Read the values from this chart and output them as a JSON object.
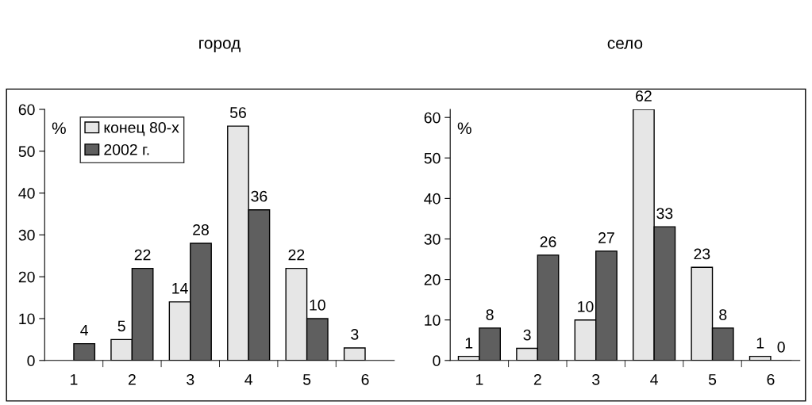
{
  "chart_data": [
    {
      "type": "bar",
      "title": "город",
      "ylabel": "%",
      "categories": [
        "1",
        "2",
        "3",
        "4",
        "5",
        "6"
      ],
      "ylim": [
        0,
        60
      ],
      "yticks": [
        0,
        10,
        20,
        30,
        40,
        50,
        60
      ],
      "data_labels": true,
      "legend": "top left",
      "grid": false,
      "series": [
        {
          "name": "конец 80-х",
          "color": "#e6e6e6",
          "values": [
            null,
            5,
            14,
            56,
            22,
            3
          ]
        },
        {
          "name": "2002 г.",
          "color": "#5f5f5f",
          "values": [
            4,
            22,
            28,
            36,
            10,
            null
          ]
        }
      ]
    },
    {
      "type": "bar",
      "title": "село",
      "ylabel": "%",
      "categories": [
        "1",
        "2",
        "3",
        "4",
        "5",
        "6"
      ],
      "ylim": [
        0,
        62
      ],
      "yticks": [
        0,
        10,
        20,
        30,
        40,
        50,
        60
      ],
      "data_labels": true,
      "grid": false,
      "series": [
        {
          "color": "#e6e6e6",
          "values": [
            1,
            3,
            10,
            62,
            23,
            1
          ]
        },
        {
          "color": "#5f5f5f",
          "values": [
            8,
            26,
            27,
            33,
            8,
            0
          ]
        }
      ]
    }
  ]
}
